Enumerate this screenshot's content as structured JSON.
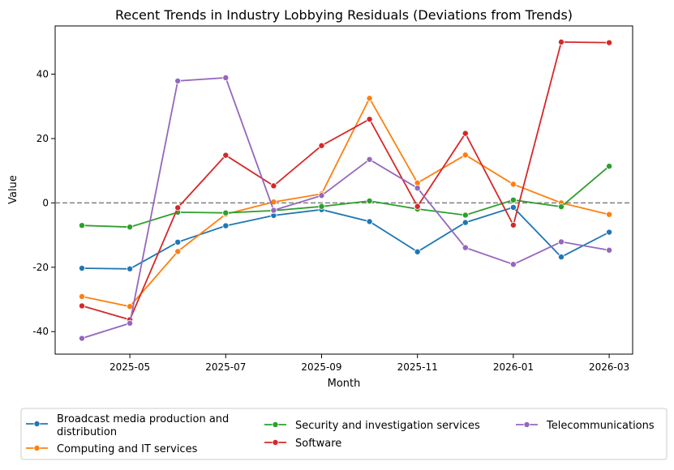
{
  "chart_data": {
    "type": "line",
    "title": "Recent Trends in Industry Lobbying Residuals (Deviations from Trends)",
    "xlabel": "Month",
    "ylabel": "Value",
    "x": [
      "2025-04",
      "2025-05",
      "2025-06",
      "2025-07",
      "2025-08",
      "2025-09",
      "2025-10",
      "2025-11",
      "2025-12",
      "2026-01",
      "2026-02",
      "2026-03"
    ],
    "xticks": [
      "2025-05",
      "2025-07",
      "2025-09",
      "2025-11",
      "2026-01",
      "2026-03"
    ],
    "yticks": [
      -40,
      -20,
      0,
      20,
      40
    ],
    "ylim": [
      -47,
      55
    ],
    "reference_line": {
      "y": 0,
      "style": "dashed",
      "color": "#808080"
    },
    "grid": false,
    "legend_position": "bottom, below plot",
    "series": [
      {
        "name": "Broadcast media production and distribution",
        "color": "#1f77b4",
        "values": [
          -20.3,
          -20.5,
          -12.2,
          -7.1,
          -3.9,
          -2.1,
          -5.8,
          -15.2,
          -6.1,
          -1.4,
          -16.8,
          -9.1
        ]
      },
      {
        "name": "Computing and IT services",
        "color": "#ff7f0e",
        "values": [
          -29.1,
          -32.2,
          -15.1,
          -3.5,
          0.3,
          2.8,
          32.5,
          6.2,
          14.9,
          5.8,
          0.0,
          -3.6
        ]
      },
      {
        "name": "Security and investigation services",
        "color": "#2ca02c",
        "values": [
          -7.0,
          -7.5,
          -2.9,
          -3.1,
          -2.4,
          -1.1,
          0.6,
          -1.9,
          -3.8,
          0.9,
          -1.2,
          11.4
        ]
      },
      {
        "name": "Software",
        "color": "#d62728",
        "values": [
          -32.0,
          -36.3,
          -1.5,
          14.8,
          5.3,
          17.8,
          26.0,
          -1.1,
          21.6,
          -6.9,
          50.0,
          49.8
        ]
      },
      {
        "name": "Telecommunications",
        "color": "#9467bd",
        "values": [
          -42.1,
          -37.4,
          37.9,
          38.9,
          -2.3,
          2.3,
          13.5,
          4.6,
          -13.9,
          -19.1,
          -12.1,
          -14.7
        ]
      }
    ]
  }
}
